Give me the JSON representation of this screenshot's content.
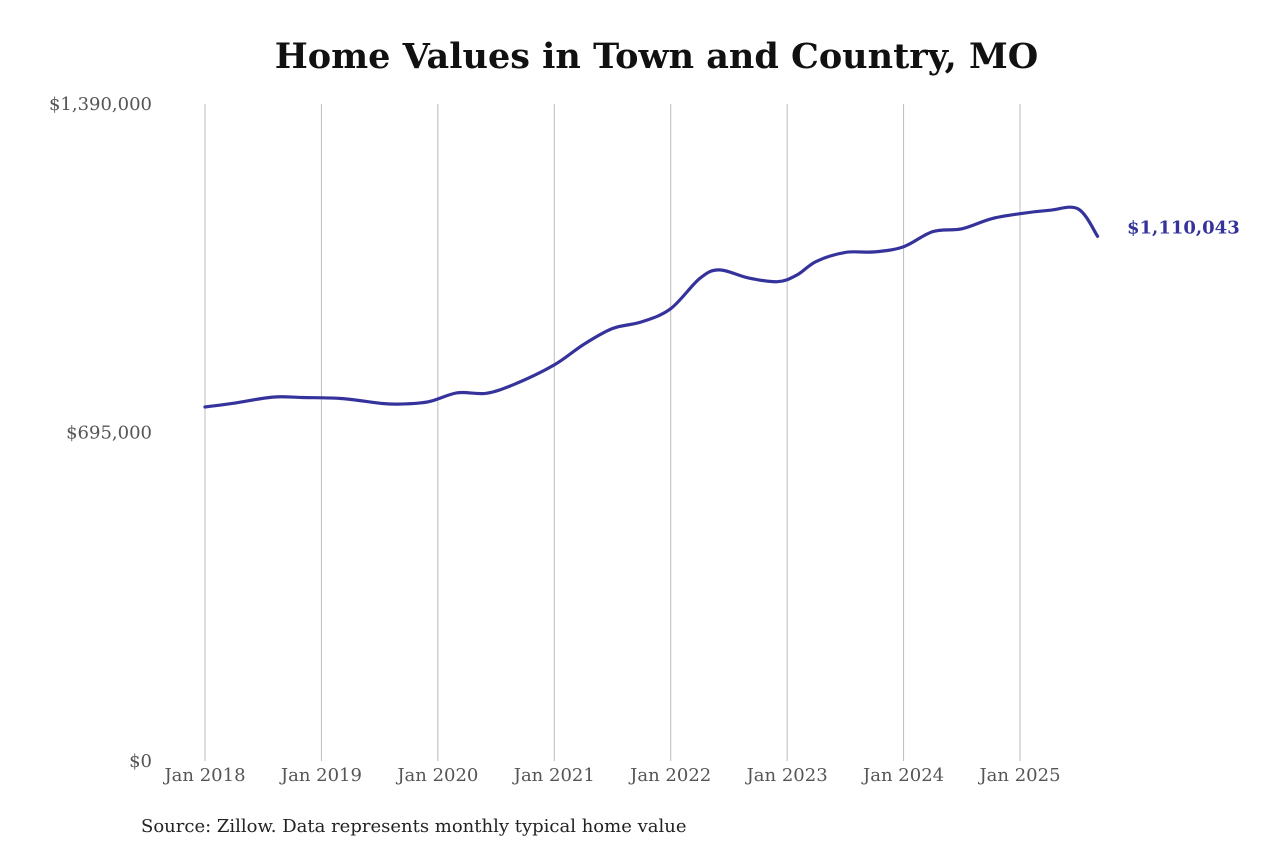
{
  "chart_data": {
    "type": "line",
    "title": "Home Values in Town and Country, MO",
    "source": "Source: Zillow. Data represents monthly typical home value",
    "line_color": "#35339b",
    "grid_color": "#bbbbbb",
    "ylim": [
      0,
      1390000
    ],
    "y_ticks": [
      {
        "value": 0,
        "label": "$0"
      },
      {
        "value": 695000,
        "label": "$695,000"
      },
      {
        "value": 1390000,
        "label": "$1,390,000"
      }
    ],
    "x_ticks": [
      {
        "value": "2018-01",
        "label": "Jan 2018"
      },
      {
        "value": "2019-01",
        "label": "Jan 2019"
      },
      {
        "value": "2020-01",
        "label": "Jan 2020"
      },
      {
        "value": "2021-01",
        "label": "Jan 2021"
      },
      {
        "value": "2022-01",
        "label": "Jan 2022"
      },
      {
        "value": "2023-01",
        "label": "Jan 2023"
      },
      {
        "value": "2024-01",
        "label": "Jan 2024"
      },
      {
        "value": "2025-01",
        "label": "Jan 2025"
      }
    ],
    "end_label": "$1,110,043",
    "series": [
      {
        "x": [
          "2018-01",
          "2018-04",
          "2018-08",
          "2018-11",
          "2019-03",
          "2019-07",
          "2019-09",
          "2019-12",
          "2020-03",
          "2020-06",
          "2020-09",
          "2021-01",
          "2021-04",
          "2021-07",
          "2021-10",
          "2022-01",
          "2022-04",
          "2022-06",
          "2022-09",
          "2022-12",
          "2023-02",
          "2023-04",
          "2023-07",
          "2023-10",
          "2024-01",
          "2024-04",
          "2024-07",
          "2024-10",
          "2025-01",
          "2025-04",
          "2025-07",
          "2025-09"
        ],
        "values": [
          749000,
          757000,
          770000,
          769000,
          767000,
          757000,
          755000,
          760000,
          779000,
          778000,
          798000,
          838000,
          881000,
          915000,
          929000,
          957000,
          1021000,
          1039000,
          1022000,
          1014000,
          1028000,
          1057000,
          1076000,
          1077000,
          1088000,
          1120000,
          1126000,
          1147000,
          1158000,
          1165000,
          1168000,
          1110043
        ]
      }
    ]
  }
}
